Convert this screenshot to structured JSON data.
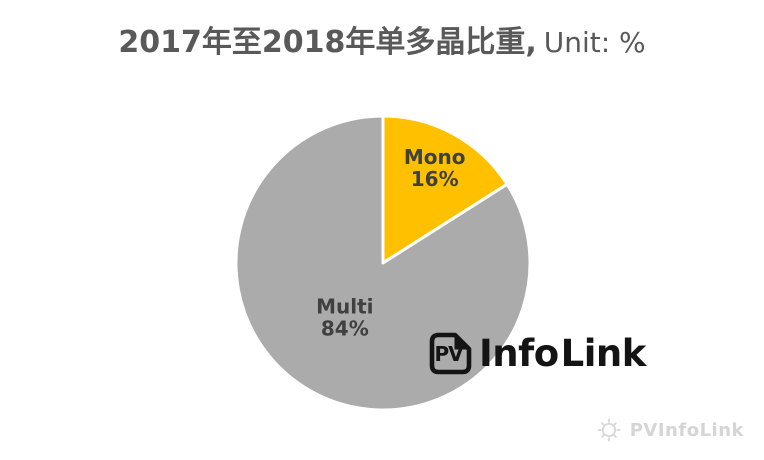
{
  "header": {
    "title_main": "2017年至2018年单多晶比重,",
    "title_unit": "Unit: %"
  },
  "chart_data": {
    "type": "pie",
    "title": "2017年至2018年单多晶比重, Unit: %",
    "unit": "%",
    "labels": [
      "Mono",
      "Multi"
    ],
    "values": [
      16,
      84
    ],
    "colors": [
      "#FFC000",
      "#ABABAB"
    ],
    "start_angle_deg": 0,
    "direction": "clockwise",
    "slice_border_color": "#FFFFFF",
    "data_label_color": "#404040",
    "data_label_format": "name + percent",
    "legend": "none"
  },
  "logo": {
    "icon_text": "PV",
    "name_bold": "Info",
    "name_regular": "Link",
    "color": "#141414"
  },
  "watermark": {
    "text": "PVInfoLink",
    "icon": "sun-icon",
    "color": "#D5D5D5"
  },
  "colors": {
    "background": "#FFFFFF",
    "title": "#595959",
    "mono_slice": "#FFC000",
    "multi_slice": "#ABABAB"
  }
}
